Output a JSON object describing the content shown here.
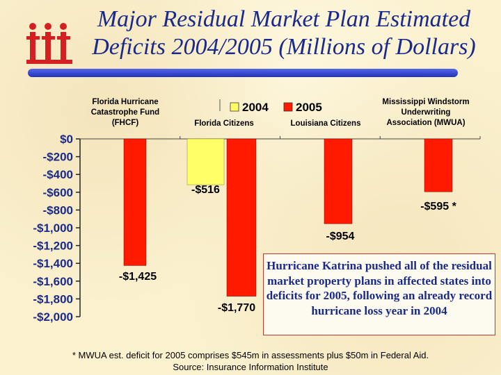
{
  "title": "Major Residual Market Plan Estimated Deficits 2004/2005 (Millions of Dollars)",
  "chart_data": {
    "type": "bar",
    "ylim": [
      -2000,
      0
    ],
    "yticks": [
      0,
      -200,
      -400,
      -600,
      -800,
      -1000,
      -1200,
      -1400,
      -1600,
      -1800,
      -2000
    ],
    "ytick_labels": [
      "$0",
      "-$200",
      "-$400",
      "-$600",
      "-$800",
      "-$1,000",
      "-$1,200",
      "-$1,400",
      "-$1,600",
      "-$1,800",
      "-$2,000"
    ],
    "categories": [
      "Florida Hurricane Catastrophe Fund (FHCF)",
      "Florida Citizens",
      "Louisiana Citizens",
      "Mississippi Windstorm Underwriting Association (MWUA)"
    ],
    "series": [
      {
        "name": "2004",
        "color": "#ffff66",
        "values": [
          null,
          -516,
          null,
          null
        ]
      },
      {
        "name": "2005",
        "color": "#ff1a00",
        "values": [
          -1425,
          -1770,
          -954,
          -595
        ]
      }
    ],
    "data_labels": {
      "2004": [
        null,
        "-$516",
        null,
        null
      ],
      "2005": [
        "-$1,425",
        "-$1,770",
        "-$954",
        "-$595 *"
      ]
    },
    "legend": "top-center",
    "grid": false
  },
  "callout_text": "Hurricane Katrina pushed all of the residual market property plans in affected states into deficits for 2005, following an already record hurricane loss year in 2004",
  "footnote": "* MWUA est. deficit for 2005 comprises $545m in assessments plus $50m in Federal Aid.",
  "source": "Source: Insurance Information Institute",
  "colors": {
    "title": "#1a2a8c",
    "bar_2005": "#ff1a00",
    "bar_2004": "#ffff66",
    "rule": "#3344cc",
    "logo": "#d42020"
  }
}
